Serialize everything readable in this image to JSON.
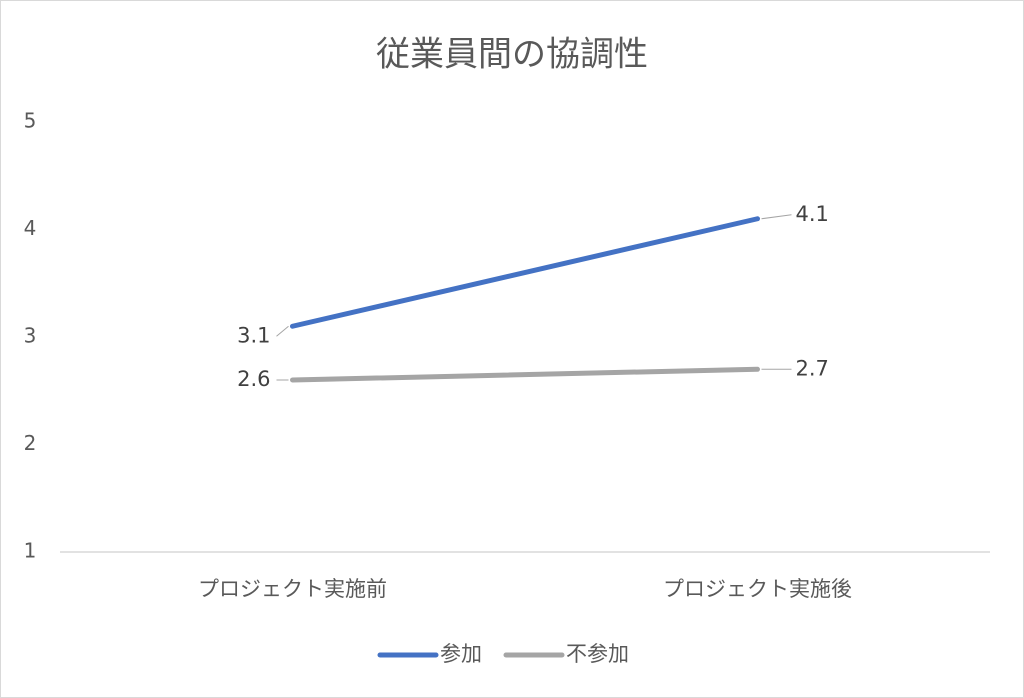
{
  "chart_data": {
    "type": "line",
    "title": "従業員間の協調性",
    "categories": [
      "プロジェクト実施前",
      "プロジェクト実施後"
    ],
    "series": [
      {
        "name": "参加",
        "color": "#4472c4",
        "values": [
          3.1,
          4.1
        ]
      },
      {
        "name": "不参加",
        "color": "#a5a5a5",
        "values": [
          2.6,
          2.7
        ]
      }
    ],
    "ylim": [
      1,
      5
    ],
    "yticks": [
      1,
      2,
      3,
      4,
      5
    ],
    "grid": false,
    "legend": "bottom"
  }
}
